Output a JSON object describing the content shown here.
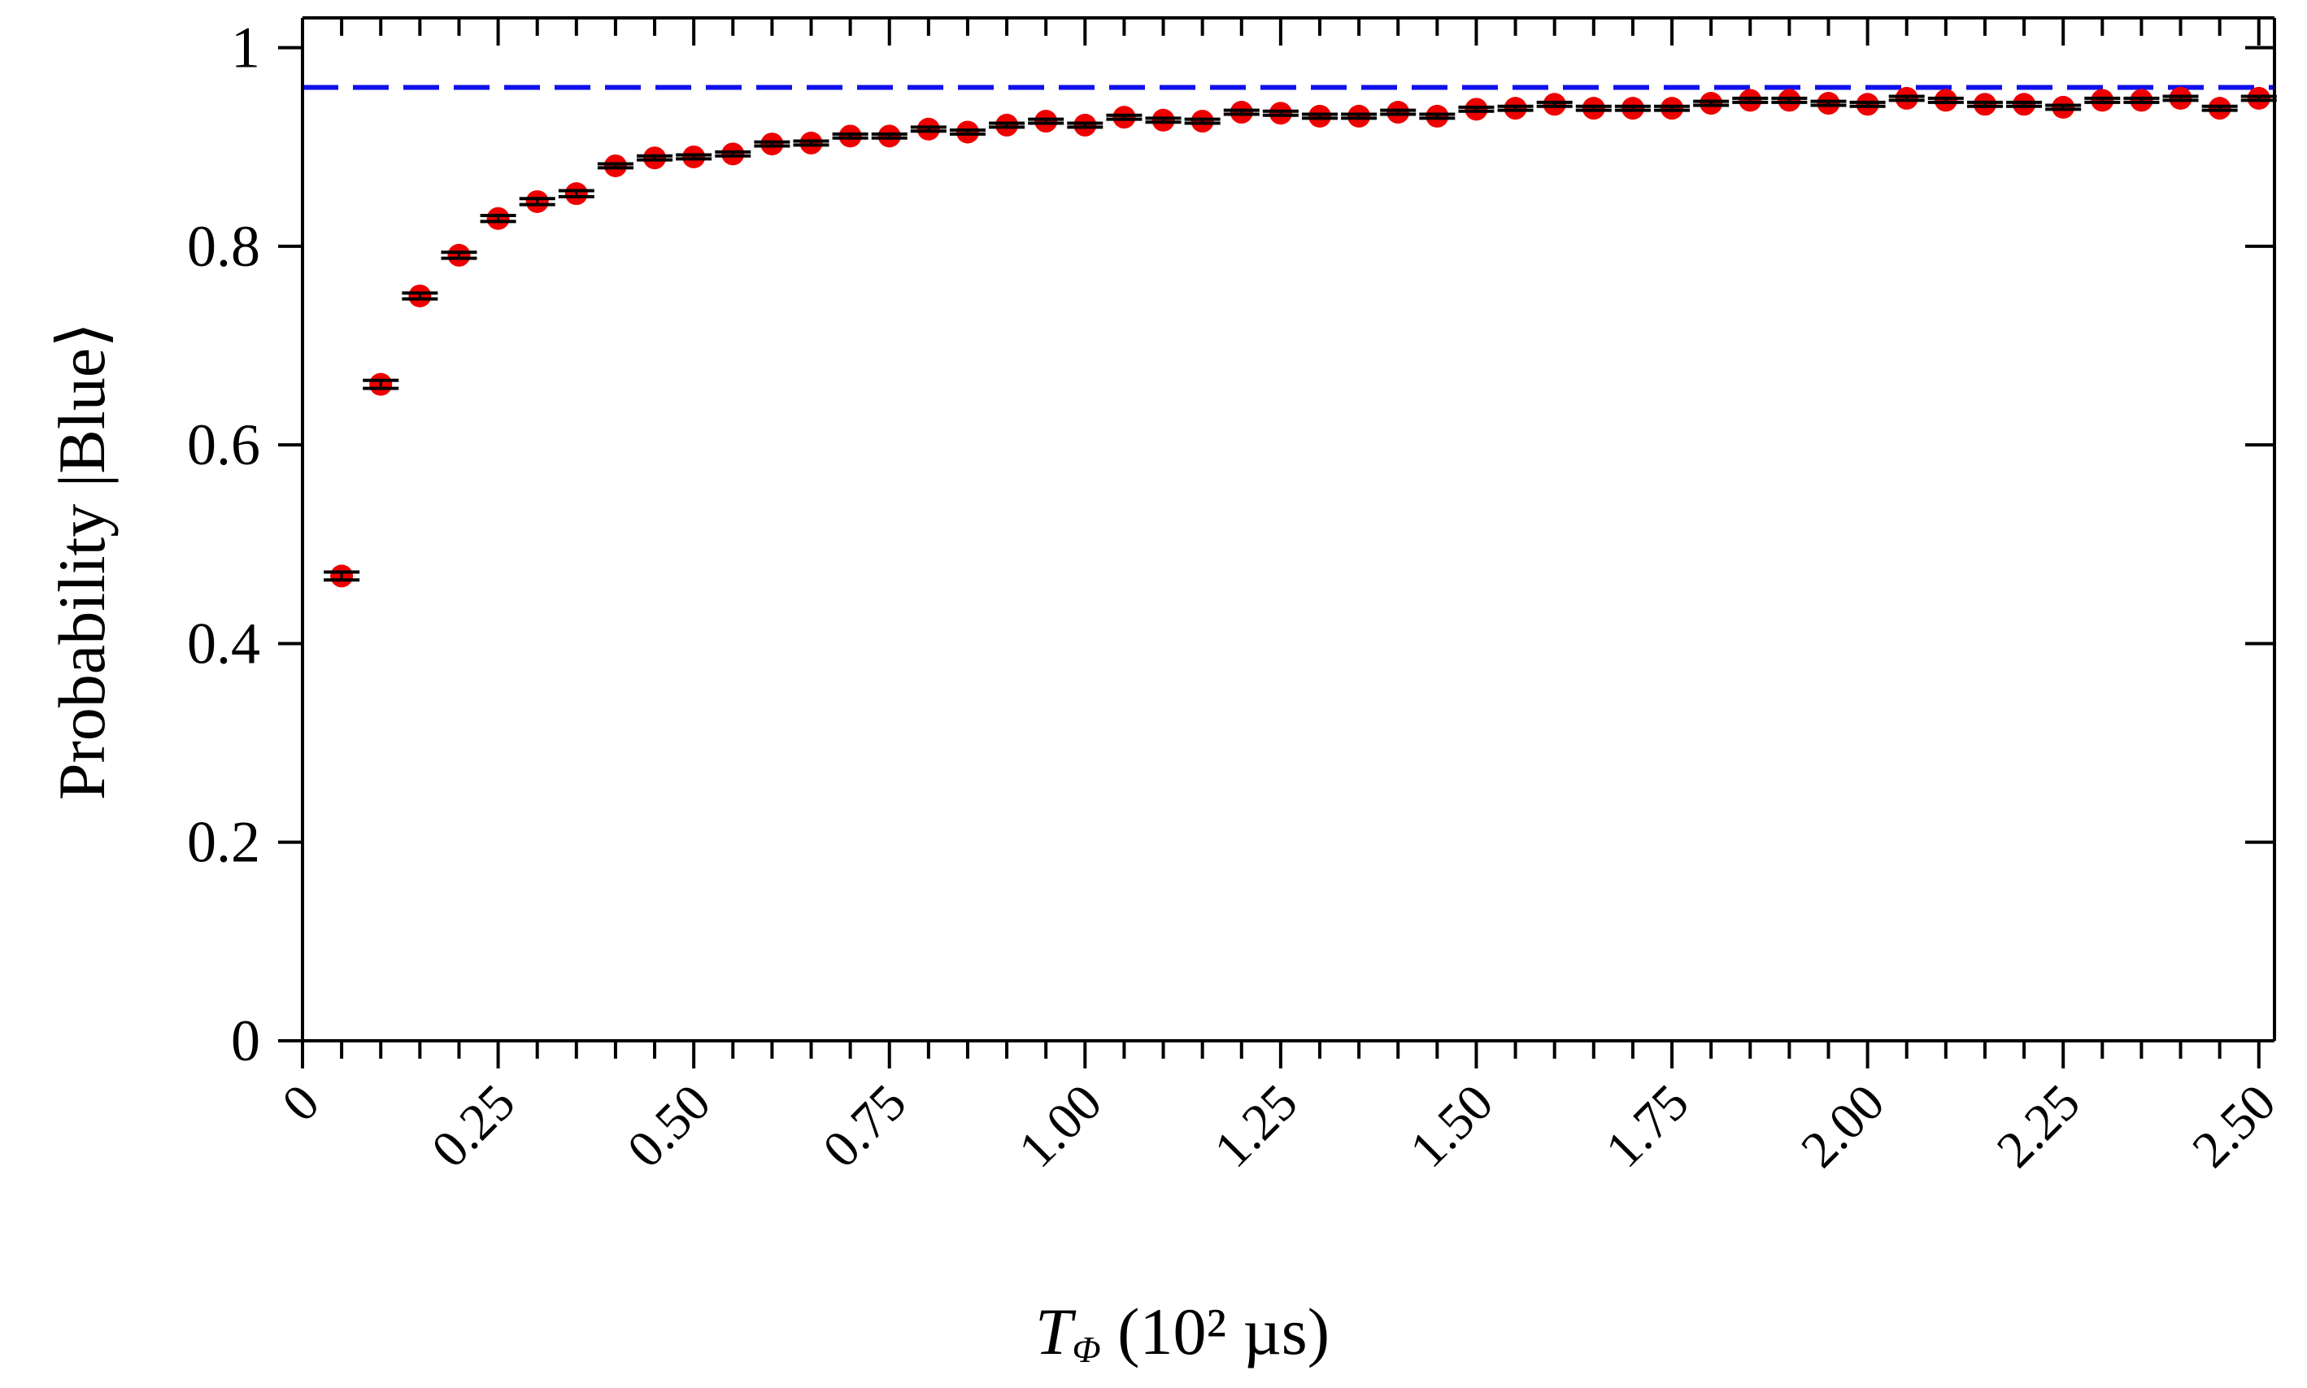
{
  "chart_data": {
    "type": "scatter",
    "xlabel_main": "T",
    "xlabel_sub": "Φ",
    "xlabel_rest": " (10² µs)",
    "ylabel": "Probability |Blue⟩",
    "xlim": [
      0,
      2.52
    ],
    "ylim": [
      0,
      1.03
    ],
    "x_tick_labels": [
      "0",
      "0.25",
      "0.50",
      "0.75",
      "1.00",
      "1.25",
      "1.50",
      "1.75",
      "2.00",
      "2.25",
      "2.50"
    ],
    "x_ticks": [
      0,
      0.25,
      0.5,
      0.75,
      1.0,
      1.25,
      1.5,
      1.75,
      2.0,
      2.25,
      2.5
    ],
    "y_tick_labels": [
      "0",
      "0.2",
      "0.4",
      "0.6",
      "0.8",
      "1"
    ],
    "y_ticks": [
      0,
      0.2,
      0.4,
      0.6,
      0.8,
      1.0
    ],
    "reference_line": {
      "y": 0.96,
      "color": "#1010ee",
      "style": "dashed"
    },
    "marker_color": "#ee0000",
    "errorbar_color": "#000000",
    "grid": false,
    "series": [
      {
        "x": [
          0.05,
          0.1,
          0.15,
          0.2,
          0.25,
          0.3,
          0.35,
          0.4,
          0.45,
          0.5,
          0.55,
          0.6,
          0.65,
          0.7,
          0.75,
          0.8,
          0.85,
          0.9,
          0.95,
          1.0,
          1.05,
          1.1,
          1.15,
          1.2,
          1.25,
          1.3,
          1.35,
          1.4,
          1.45,
          1.5,
          1.55,
          1.6,
          1.65,
          1.7,
          1.75,
          1.8,
          1.85,
          1.9,
          1.95,
          2.0,
          2.05,
          2.1,
          2.15,
          2.2,
          2.25,
          2.3,
          2.35,
          2.4,
          2.45,
          2.5
        ],
        "y": [
          0.468,
          0.661,
          0.75,
          0.791,
          0.828,
          0.845,
          0.853,
          0.881,
          0.889,
          0.89,
          0.893,
          0.903,
          0.904,
          0.911,
          0.911,
          0.918,
          0.915,
          0.922,
          0.926,
          0.922,
          0.93,
          0.927,
          0.926,
          0.935,
          0.934,
          0.931,
          0.931,
          0.935,
          0.931,
          0.938,
          0.939,
          0.943,
          0.939,
          0.939,
          0.939,
          0.944,
          0.947,
          0.947,
          0.944,
          0.943,
          0.949,
          0.947,
          0.943,
          0.943,
          0.94,
          0.947,
          0.947,
          0.949,
          0.939,
          0.949
        ],
        "err": [
          0.004,
          0.004,
          0.003,
          0.003,
          0.003,
          0.003,
          0.003,
          0.002,
          0.002,
          0.002,
          0.002,
          0.002,
          0.002,
          0.002,
          0.002,
          0.002,
          0.002,
          0.002,
          0.002,
          0.002,
          0.002,
          0.002,
          0.002,
          0.002,
          0.002,
          0.002,
          0.002,
          0.002,
          0.002,
          0.002,
          0.002,
          0.002,
          0.002,
          0.002,
          0.002,
          0.002,
          0.002,
          0.002,
          0.002,
          0.002,
          0.002,
          0.002,
          0.002,
          0.002,
          0.002,
          0.002,
          0.002,
          0.002,
          0.002,
          0.002
        ]
      }
    ]
  }
}
